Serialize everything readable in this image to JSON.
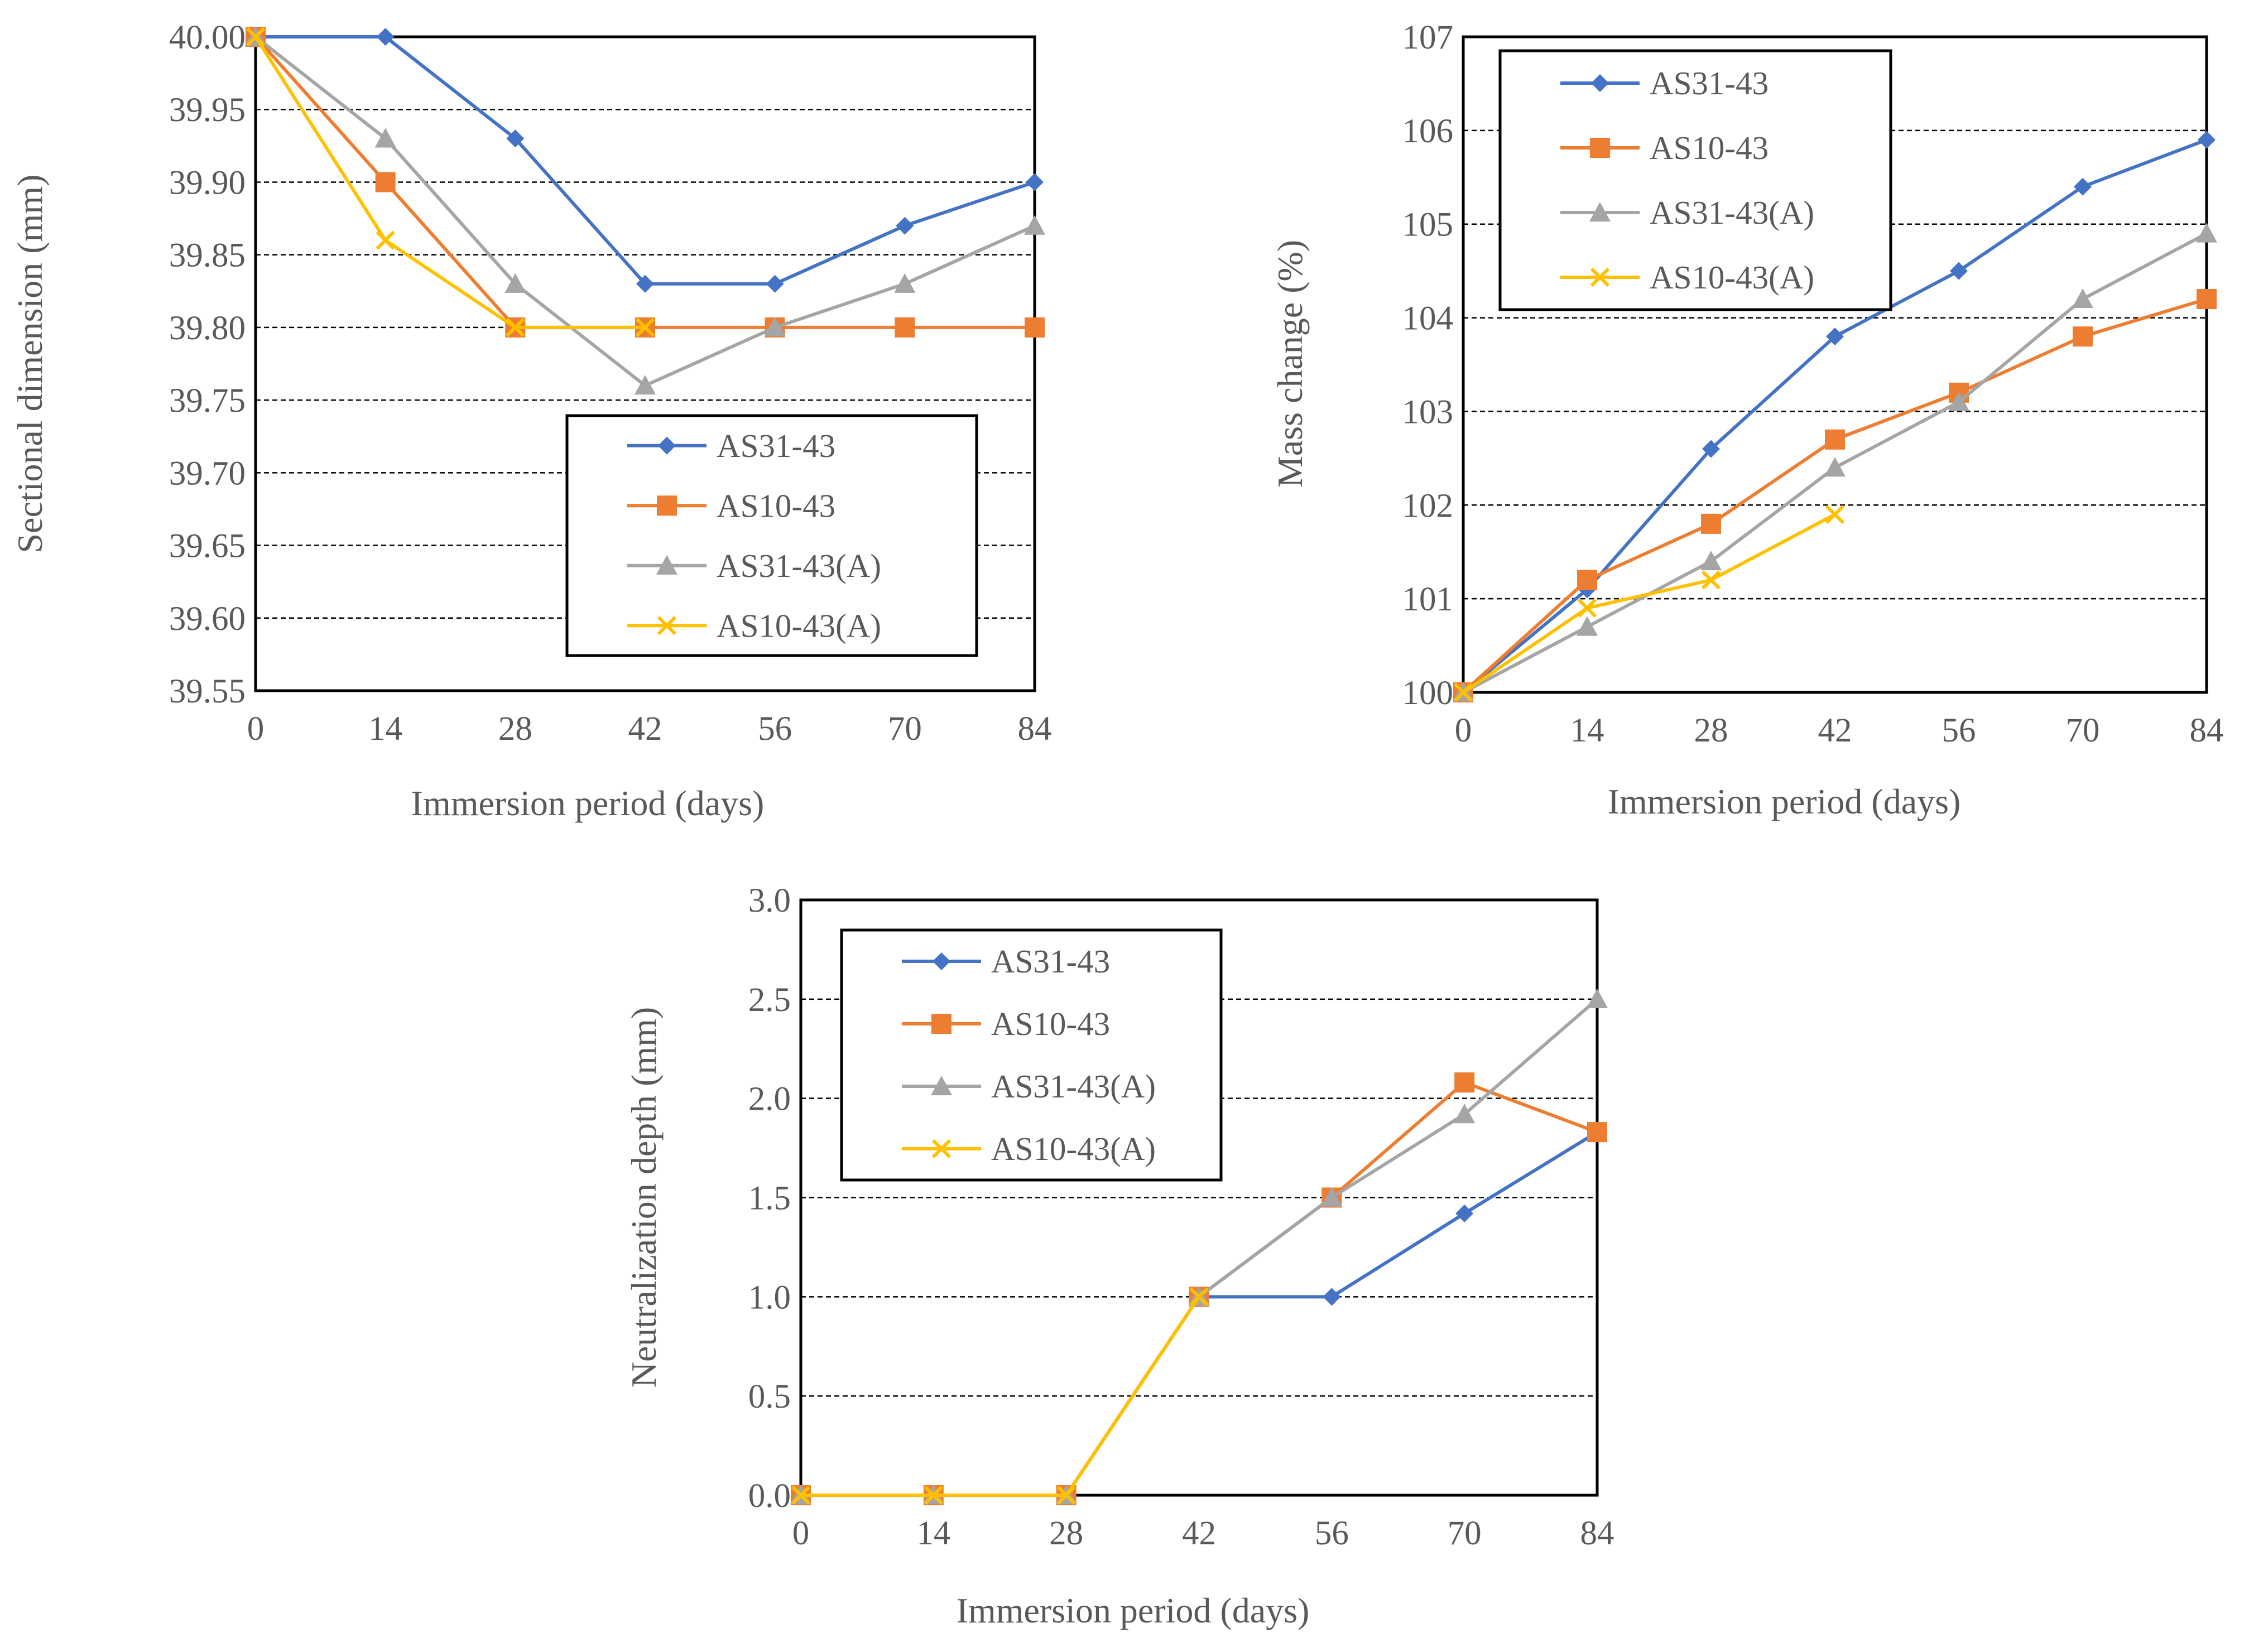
{
  "chart_data": [
    {
      "id": "chart-sectional",
      "type": "line",
      "title": "",
      "xlabel": "Immersion period (days)",
      "ylabel": "Sectional dimension (mm)",
      "x": [
        0,
        14,
        28,
        42,
        56,
        70,
        84
      ],
      "xticks": [
        "0",
        "14",
        "28",
        "42",
        "56",
        "70",
        "84"
      ],
      "ylim": [
        39.55,
        40.0
      ],
      "yticks": [
        "39.55",
        "39.60",
        "39.65",
        "39.70",
        "39.75",
        "39.80",
        "39.85",
        "39.90",
        "39.95",
        "40.00"
      ],
      "grid": "horizontal-dashed",
      "legend_position": "bottom-right",
      "series": [
        {
          "name": "AS31-43",
          "color": "#4472C4",
          "marker": "diamond",
          "values": [
            40.0,
            40.0,
            39.93,
            39.83,
            39.83,
            39.87,
            39.9
          ]
        },
        {
          "name": "AS10-43",
          "color": "#ED7D31",
          "marker": "square",
          "values": [
            40.0,
            39.9,
            39.8,
            39.8,
            39.8,
            39.8,
            39.8
          ]
        },
        {
          "name": "AS31-43(A)",
          "color": "#A5A5A5",
          "marker": "triangle",
          "values": [
            40.0,
            39.93,
            39.83,
            39.76,
            39.8,
            39.83,
            39.87
          ]
        },
        {
          "name": "AS10-43(A)",
          "color": "#FFC000",
          "marker": "x",
          "values": [
            40.0,
            39.86,
            39.8,
            39.8,
            null,
            null,
            null
          ]
        }
      ]
    },
    {
      "id": "chart-mass",
      "type": "line",
      "title": "",
      "xlabel": "Immersion period (days)",
      "ylabel": "Mass change (%)",
      "x": [
        0,
        14,
        28,
        42,
        56,
        70,
        84
      ],
      "xticks": [
        "0",
        "14",
        "28",
        "42",
        "56",
        "70",
        "84"
      ],
      "ylim": [
        100,
        107
      ],
      "yticks": [
        "100",
        "101",
        "102",
        "103",
        "104",
        "105",
        "106",
        "107"
      ],
      "grid": "horizontal-dashed",
      "legend_position": "top-left",
      "series": [
        {
          "name": "AS31-43",
          "color": "#4472C4",
          "marker": "diamond",
          "values": [
            100,
            101.1,
            102.6,
            103.8,
            104.5,
            105.4,
            105.9
          ]
        },
        {
          "name": "AS10-43",
          "color": "#ED7D31",
          "marker": "square",
          "values": [
            100,
            101.2,
            101.8,
            102.7,
            103.2,
            103.8,
            104.2
          ]
        },
        {
          "name": "AS31-43(A)",
          "color": "#A5A5A5",
          "marker": "triangle",
          "values": [
            100,
            100.7,
            101.4,
            102.4,
            103.1,
            104.2,
            104.9
          ]
        },
        {
          "name": "AS10-43(A)",
          "color": "#FFC000",
          "marker": "x",
          "values": [
            100,
            100.9,
            101.2,
            101.9,
            null,
            null,
            null
          ]
        }
      ]
    },
    {
      "id": "chart-neutral",
      "type": "line",
      "title": "",
      "xlabel": "Immersion period (days)",
      "ylabel": "Neutralization depth (mm)",
      "x": [
        0,
        14,
        28,
        42,
        56,
        70,
        84
      ],
      "xticks": [
        "0",
        "14",
        "28",
        "42",
        "56",
        "70",
        "84"
      ],
      "ylim": [
        0,
        3.0
      ],
      "yticks": [
        "0.0",
        "0.5",
        "1.0",
        "1.5",
        "2.0",
        "2.5",
        "3.0"
      ],
      "grid": "horizontal-dashed",
      "legend_position": "top-left",
      "series": [
        {
          "name": "AS31-43",
          "color": "#4472C4",
          "marker": "diamond",
          "values": [
            0,
            0,
            0,
            1.0,
            1.0,
            1.42,
            1.83
          ]
        },
        {
          "name": "AS10-43",
          "color": "#ED7D31",
          "marker": "square",
          "values": [
            0,
            0,
            0,
            1.0,
            1.5,
            2.08,
            1.83
          ]
        },
        {
          "name": "AS31-43(A)",
          "color": "#A5A5A5",
          "marker": "triangle",
          "values": [
            0,
            0,
            0,
            1.0,
            1.5,
            1.92,
            2.5
          ]
        },
        {
          "name": "AS10-43(A)",
          "color": "#FFC000",
          "marker": "x",
          "values": [
            0,
            0,
            0,
            1.0,
            null,
            null,
            null
          ]
        }
      ]
    }
  ]
}
